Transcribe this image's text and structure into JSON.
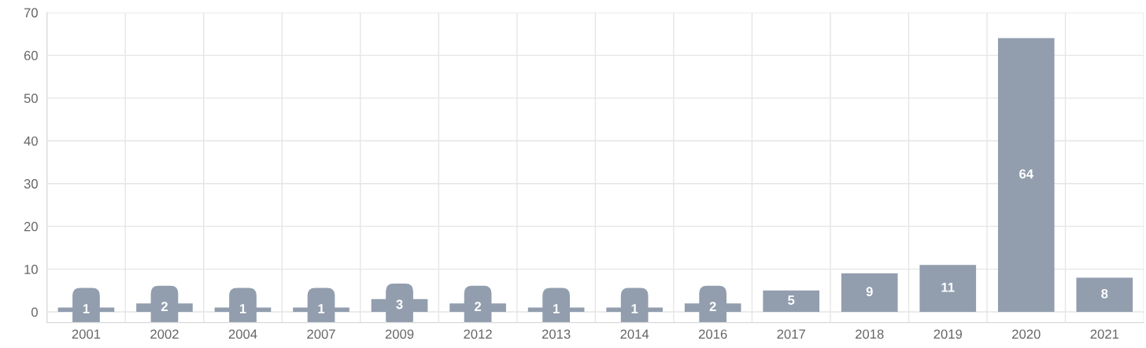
{
  "chart_data": {
    "type": "bar",
    "categories": [
      "2001",
      "2002",
      "2004",
      "2007",
      "2009",
      "2012",
      "2013",
      "2014",
      "2016",
      "2017",
      "2018",
      "2019",
      "2020",
      "2021"
    ],
    "values": [
      1,
      2,
      1,
      1,
      3,
      2,
      1,
      1,
      2,
      5,
      9,
      11,
      64,
      8
    ],
    "color": "#929eae",
    "ylim": [
      -2.5,
      70
    ],
    "yticks": [
      0,
      10,
      20,
      30,
      40,
      50,
      60,
      70
    ],
    "grid": true,
    "data_labels": true
  }
}
